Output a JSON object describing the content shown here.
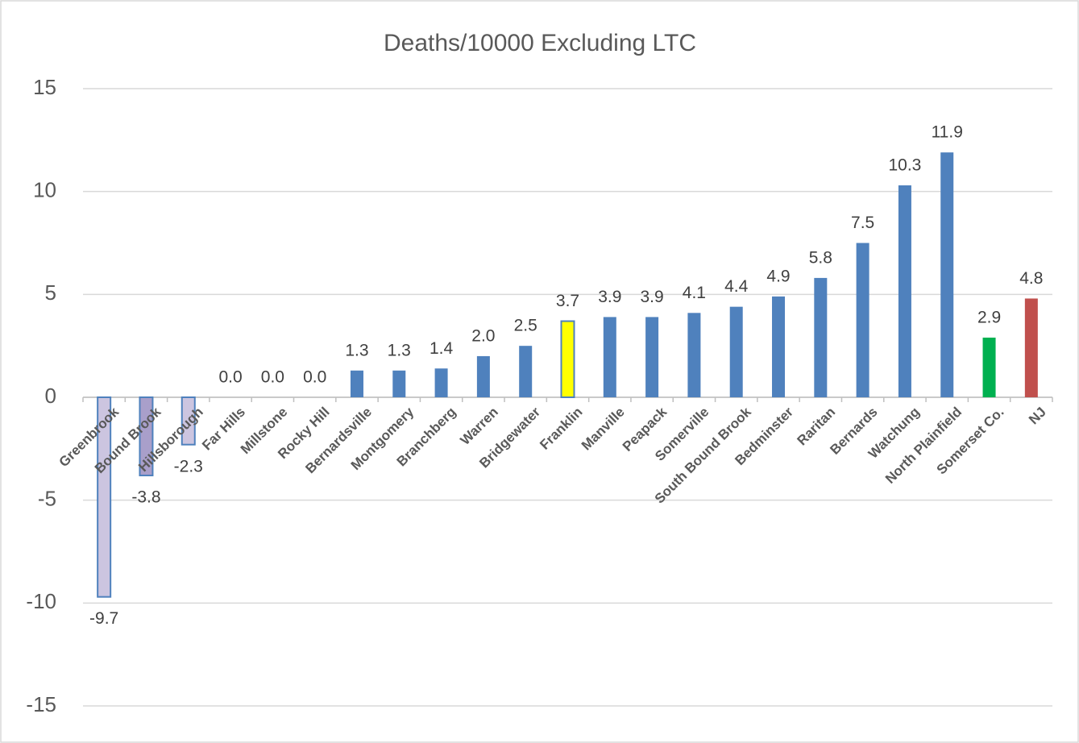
{
  "chart_data": {
    "type": "bar",
    "title": "Deaths/10000 Excluding LTC",
    "categories": [
      "Greenbrook",
      "Bound Brook",
      "Hillsborough",
      "Far Hills",
      "Millstone",
      "Rocky Hill",
      "Bernardsville",
      "Montgomery",
      "Branchberg",
      "Warren",
      "Bridgewater",
      "Franklin",
      "Manville",
      "Peapack",
      "Somerville",
      "South Bound Brook",
      "Bedminster",
      "Raritan",
      "Bernards",
      "Watchung",
      "North Plainfield",
      "Somerset Co.",
      "NJ"
    ],
    "values": [
      -9.7,
      -3.8,
      -2.3,
      0,
      0,
      0,
      1.3,
      1.3,
      1.4,
      2,
      2.5,
      3.7,
      3.9,
      3.9,
      4.1,
      4.4,
      4.9,
      5.8,
      7.5,
      10.3,
      11.9,
      2.9,
      4.8
    ],
    "value_labels": [
      "-9.7",
      "-3.8",
      "-2.3",
      "0.0",
      "0.0",
      "0.0",
      "1.3",
      "1.3",
      "1.4",
      "2.0",
      "2.5",
      "3.7",
      "3.9",
      "3.9",
      "4.1",
      "4.4",
      "4.9",
      "5.8",
      "7.5",
      "10.3",
      "11.9",
      "2.9",
      "4.8"
    ],
    "colors": [
      "#ccc5e0",
      "#a99fca",
      "#ccc5e0",
      "#4f81bd",
      "#4f81bd",
      "#4f81bd",
      "#4f81bd",
      "#4f81bd",
      "#4f81bd",
      "#4f81bd",
      "#4f81bd",
      "#ffff00",
      "#4f81bd",
      "#4f81bd",
      "#4f81bd",
      "#4f81bd",
      "#4f81bd",
      "#4f81bd",
      "#4f81bd",
      "#4f81bd",
      "#4f81bd",
      "#00b050",
      "#c0504d"
    ],
    "ylim": [
      -15,
      15
    ],
    "yticks": [
      -15,
      -10,
      -5,
      0,
      5,
      10,
      15
    ],
    "grid": true
  }
}
